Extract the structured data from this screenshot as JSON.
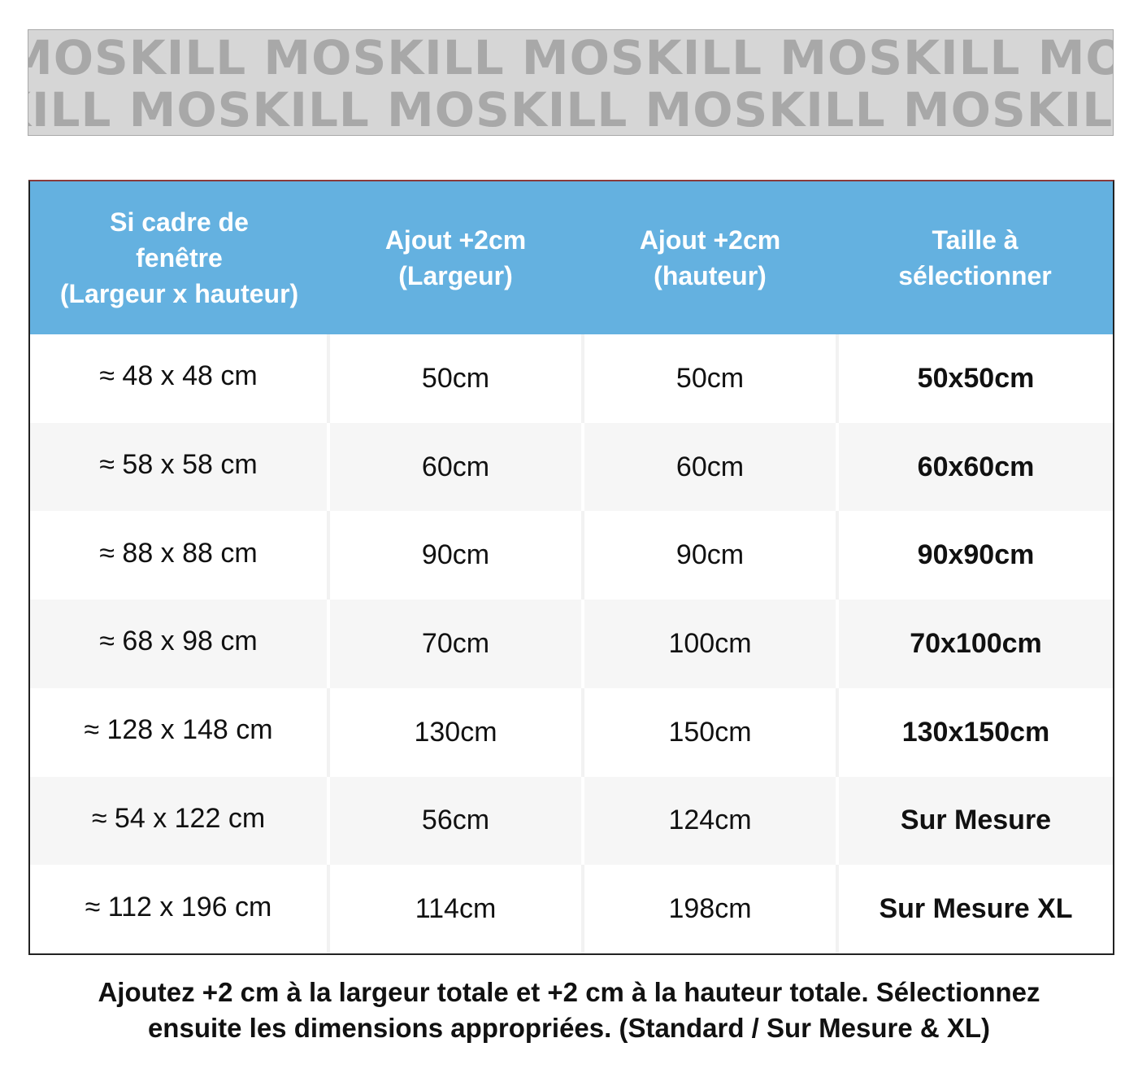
{
  "banner": {
    "row1": "MOSKILL MOSKILL MOSKILL MOSKILL MOSKILL",
    "row2": "KILL MOSKILL MOSKILL MOSKILL MOSKILL MOSKILL"
  },
  "table": {
    "headers": [
      {
        "lines": [
          "Si cadre de",
          "fenêtre",
          "(Largeur x hauteur)"
        ]
      },
      {
        "lines": [
          "Ajout +2cm",
          "(Largeur)"
        ]
      },
      {
        "lines": [
          "Ajout +2cm",
          "(hauteur)"
        ]
      },
      {
        "lines": [
          "Taille à",
          "sélectionner"
        ]
      }
    ],
    "rows": [
      {
        "frame": "≈ 48 x 48 cm",
        "width": "50cm",
        "height": "50cm",
        "size": "50x50cm"
      },
      {
        "frame": "≈ 58 x 58 cm",
        "width": "60cm",
        "height": "60cm",
        "size": "60x60cm"
      },
      {
        "frame": "≈ 88 x 88 cm",
        "width": "90cm",
        "height": "90cm",
        "size": "90x90cm"
      },
      {
        "frame": "≈ 68 x 98 cm",
        "width": "70cm",
        "height": "100cm",
        "size": "70x100cm"
      },
      {
        "frame": "≈ 128 x 148 cm",
        "width": "130cm",
        "height": "150cm",
        "size": "130x150cm"
      },
      {
        "frame": "≈ 54 x 122 cm",
        "width": "56cm",
        "height": "124cm",
        "size": "Sur Mesure"
      },
      {
        "frame": "≈ 112 x 196 cm",
        "width": "114cm",
        "height": "198cm",
        "size": "Sur Mesure XL"
      }
    ]
  },
  "footnote": {
    "line1": "Ajoutez +2 cm à la largeur totale et +2 cm à la hauteur totale. Sélectionnez",
    "line2": "ensuite les dimensions appropriées. (Standard / Sur Mesure & XL)"
  }
}
